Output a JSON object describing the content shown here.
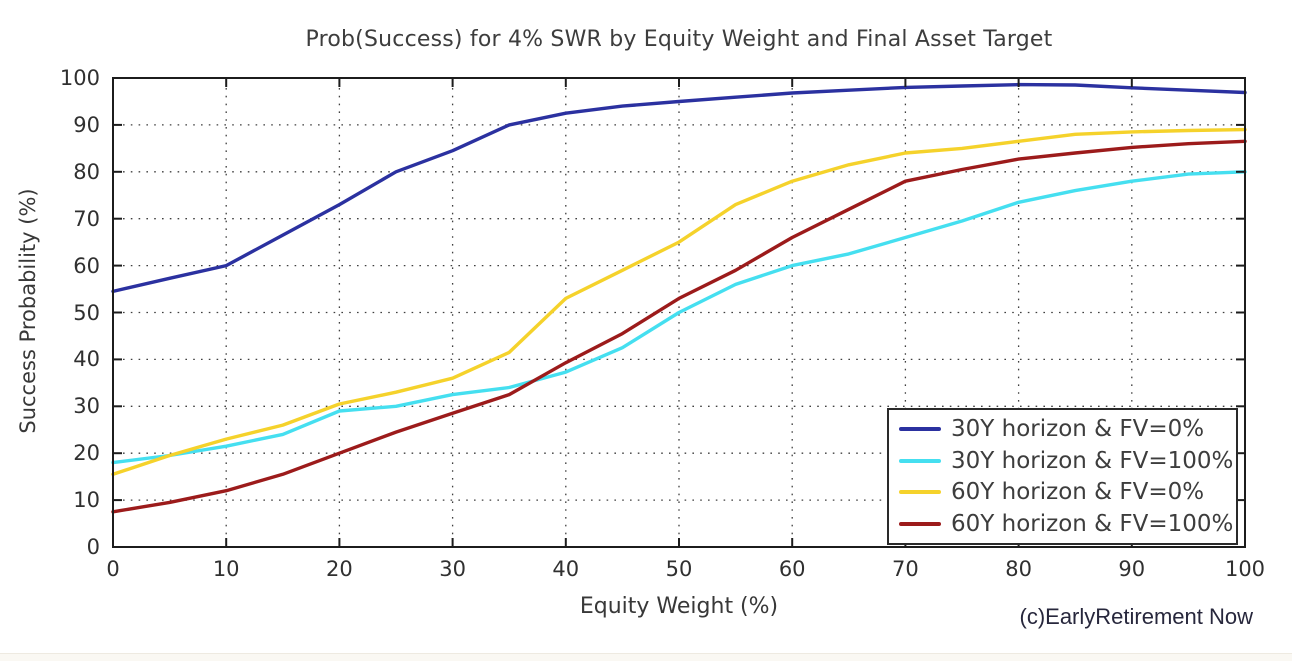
{
  "attribution": "(c)EarlyRetirement Now",
  "chart_data": {
    "type": "line",
    "title": "Prob(Success) for 4% SWR by Equity Weight and Final Asset Target",
    "xlabel": "Equity Weight (%)",
    "ylabel": "Success Probability (%)",
    "xlim": [
      0,
      100
    ],
    "ylim": [
      0,
      100
    ],
    "x_ticks": [
      0,
      10,
      20,
      30,
      40,
      50,
      60,
      70,
      80,
      90,
      100
    ],
    "y_ticks": [
      0,
      10,
      20,
      30,
      40,
      50,
      60,
      70,
      80,
      90,
      100
    ],
    "grid": "dotted",
    "legend_position": "lower-right",
    "x": [
      0,
      5,
      10,
      15,
      20,
      25,
      30,
      35,
      40,
      45,
      50,
      55,
      60,
      65,
      70,
      75,
      80,
      85,
      90,
      95,
      100
    ],
    "series": [
      {
        "name": "30Y horizon & FV=0%",
        "slug": "30y-fv0",
        "color": "#2b31a0",
        "values": [
          54.5,
          57.3,
          60,
          66.5,
          73,
          80,
          84.5,
          90,
          92.5,
          94,
          95,
          95.9,
          96.8,
          97.4,
          98,
          98.3,
          98.6,
          98.5,
          97.9,
          97.4,
          96.9
        ]
      },
      {
        "name": "30Y horizon & FV=100%",
        "slug": "30y-fv100",
        "color": "#45dff0",
        "values": [
          18,
          19.5,
          21.5,
          24,
          29,
          30,
          32.5,
          34,
          37.3,
          42.5,
          50,
          56,
          60,
          62.5,
          66,
          69.5,
          73.5,
          76,
          78,
          79.5,
          80
        ]
      },
      {
        "name": "60Y horizon & FV=0%",
        "slug": "60y-fv0",
        "color": "#f5d22b",
        "values": [
          15.5,
          19.5,
          23,
          26,
          30.5,
          33,
          36,
          41.5,
          53,
          59,
          65,
          73,
          78,
          81.5,
          84,
          85,
          86.5,
          88,
          88.5,
          88.8,
          89
        ]
      },
      {
        "name": "60Y horizon & FV=100%",
        "slug": "60y-fv100",
        "color": "#9c1b1b",
        "values": [
          7.5,
          9.5,
          12,
          15.5,
          20,
          24.5,
          28.5,
          32.5,
          39.3,
          45.5,
          53,
          59,
          66,
          72,
          78,
          80.5,
          82.7,
          84,
          85.2,
          86,
          86.5
        ]
      }
    ]
  }
}
